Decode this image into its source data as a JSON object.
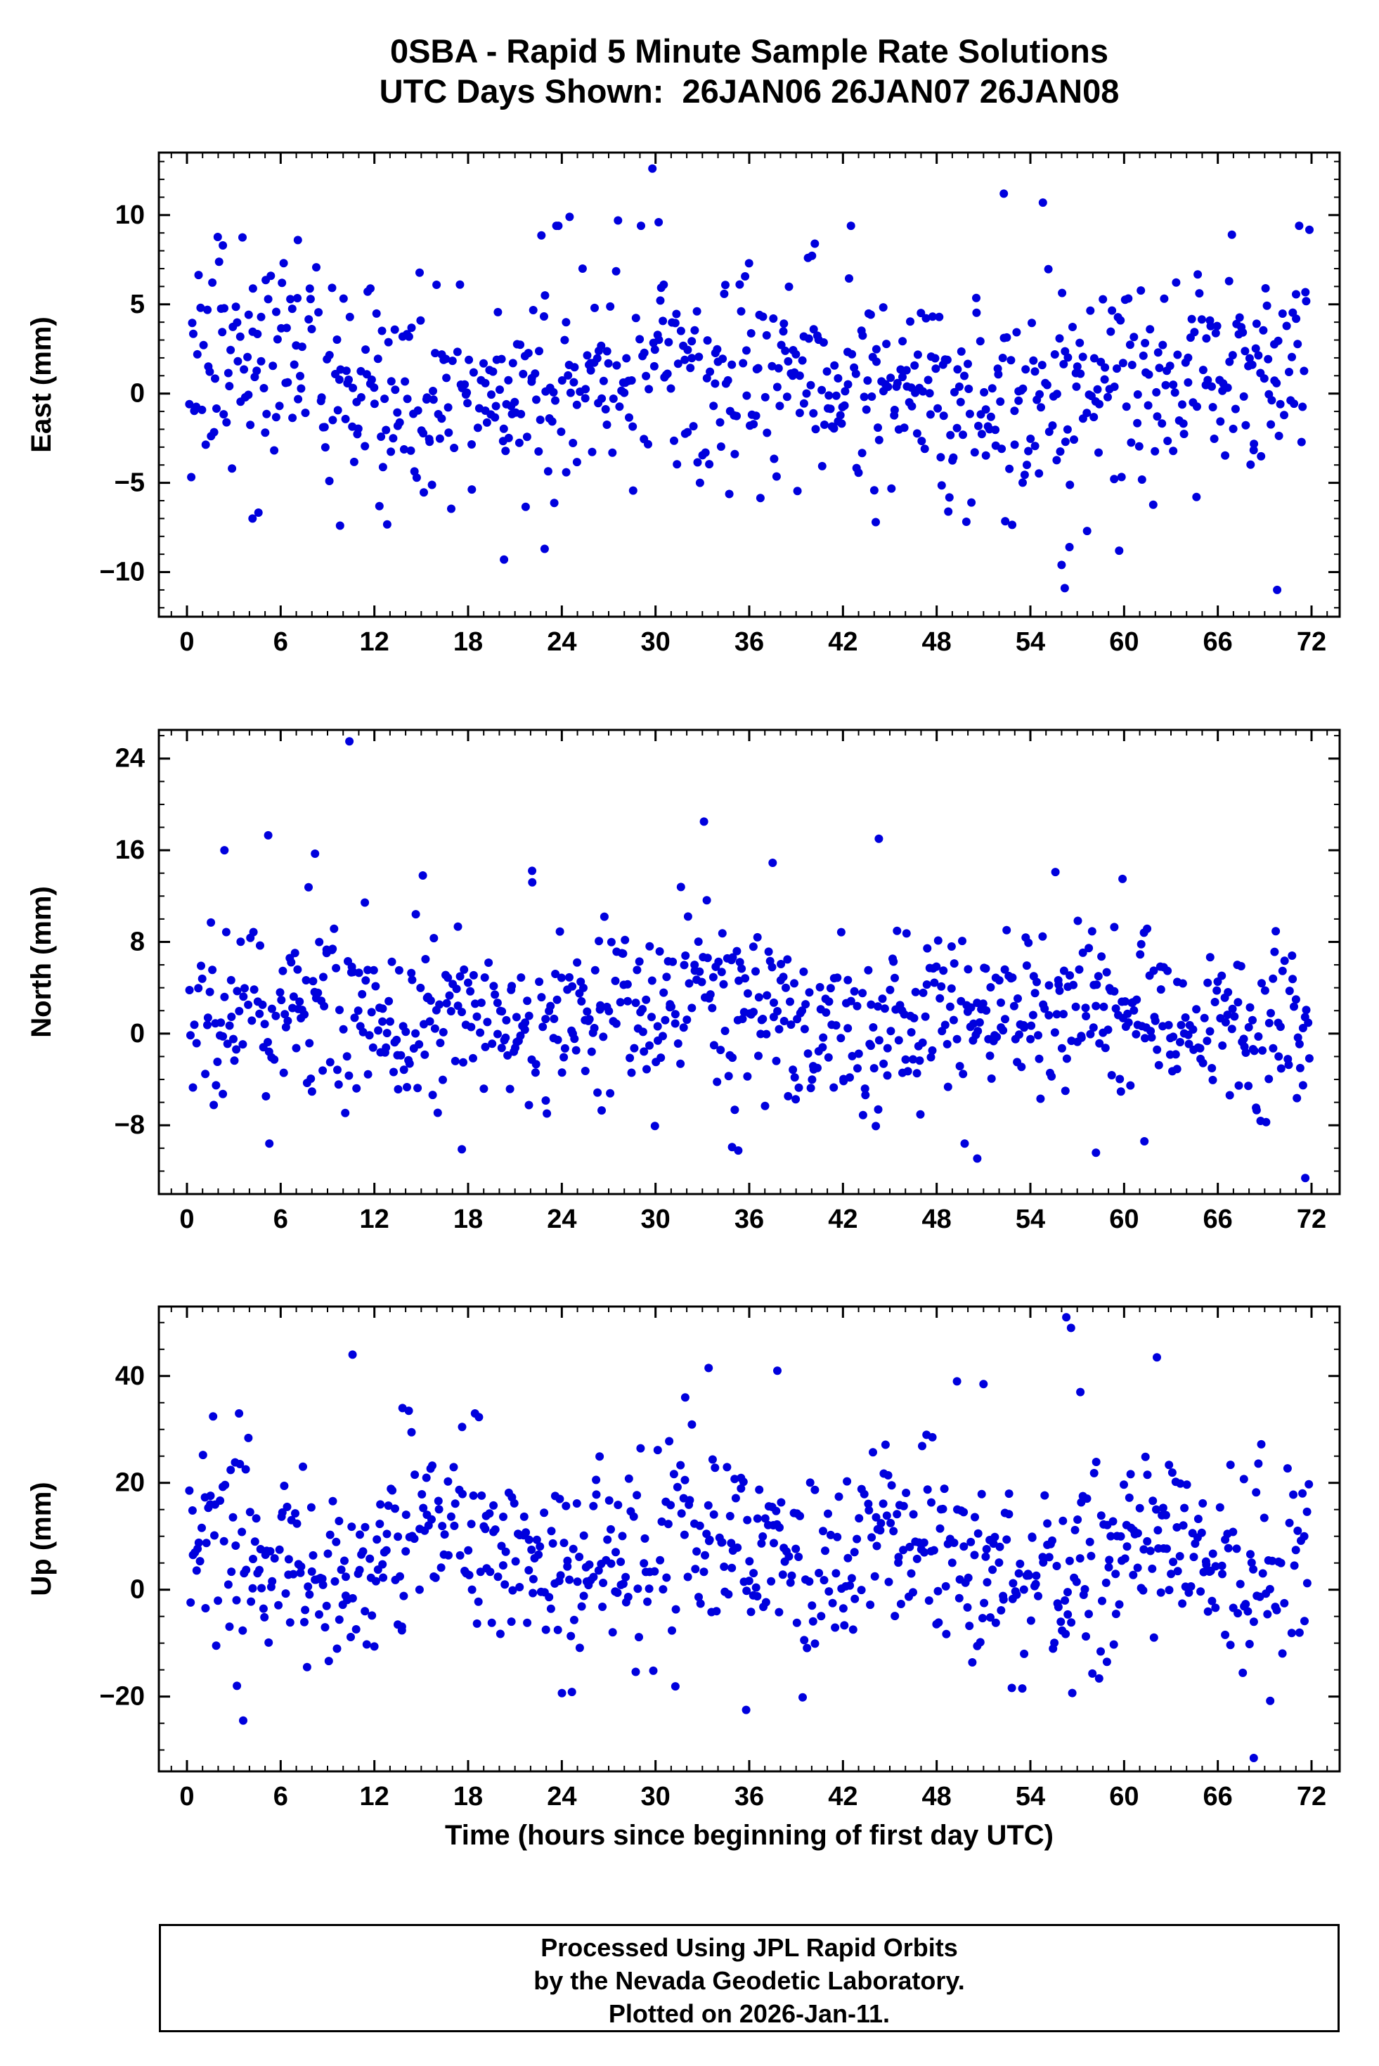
{
  "header": {
    "title_line1": "0SBA - Rapid 5 Minute Sample Rate Solutions",
    "title_line2": "UTC Days Shown:  26JAN06 26JAN07 26JAN08"
  },
  "footer": {
    "line1": "Processed Using JPL Rapid Orbits",
    "line2": "by the Nevada Geodetic Laboratory.",
    "line3": "Plotted on 2026-Jan-11."
  },
  "colors": {
    "point": "#0000dd",
    "frame": "#000000",
    "background": "#ffffff"
  },
  "chart_data": [
    {
      "type": "scatter",
      "title": "0SBA - Rapid 5 Minute Sample Rate Solutions",
      "ylabel": "East (mm)",
      "xlabel": "",
      "xlim": [
        -1.8,
        73.8
      ],
      "ylim": [
        -12.5,
        13.5
      ],
      "xticks": [
        0,
        6,
        12,
        18,
        24,
        30,
        36,
        42,
        48,
        54,
        60,
        66,
        72
      ],
      "yticks": [
        -10,
        -5,
        0,
        5,
        10
      ],
      "x_minor": 1,
      "y_minor": 1,
      "point_color": "#0000dd",
      "scatter_spec": {
        "count": 820,
        "seed": 11,
        "gap": 0.07,
        "mean": 0.8,
        "std": 3.0,
        "wave_amp": 1.2,
        "wave_period": 34,
        "wave_phase": 1.2,
        "clip": [
          -8.8,
          9.4
        ]
      },
      "outliers": [
        [
          29.8,
          12.6
        ],
        [
          52.3,
          11.2
        ],
        [
          54.8,
          10.7
        ],
        [
          24.5,
          9.9
        ],
        [
          27.6,
          9.7
        ],
        [
          30.2,
          9.6
        ],
        [
          66.9,
          8.9
        ],
        [
          2.3,
          8.3
        ],
        [
          7.1,
          8.6
        ],
        [
          40.2,
          8.4
        ],
        [
          56.2,
          -10.9
        ],
        [
          69.8,
          -11.0
        ],
        [
          56.0,
          -9.6
        ],
        [
          20.3,
          -9.3
        ],
        [
          22.9,
          -8.7
        ],
        [
          56.5,
          -8.6
        ],
        [
          44.1,
          -7.2
        ],
        [
          9.8,
          -7.4
        ],
        [
          4.2,
          -7.0
        ]
      ]
    },
    {
      "type": "scatter",
      "ylabel": "North (mm)",
      "xlabel": "",
      "xlim": [
        -1.8,
        73.8
      ],
      "ylim": [
        -14,
        26.5
      ],
      "xticks": [
        0,
        6,
        12,
        18,
        24,
        30,
        36,
        42,
        48,
        54,
        60,
        66,
        72
      ],
      "yticks": [
        -8,
        0,
        8,
        16,
        24
      ],
      "x_minor": 1,
      "y_minor": 2,
      "point_color": "#0000dd",
      "scatter_spec": {
        "count": 820,
        "seed": 22,
        "gap": 0.07,
        "mean": 1.6,
        "std": 3.7,
        "wave_amp": 1.0,
        "wave_period": 26,
        "wave_phase": 0.4,
        "clip": [
          -9.6,
          13.2
        ]
      },
      "outliers": [
        [
          10.4,
          25.5
        ],
        [
          33.1,
          18.5
        ],
        [
          5.2,
          17.3
        ],
        [
          44.3,
          17.0
        ],
        [
          37.5,
          14.9
        ],
        [
          22.1,
          14.2
        ],
        [
          55.6,
          14.1
        ],
        [
          59.9,
          13.5
        ],
        [
          8.2,
          15.7
        ],
        [
          2.4,
          16.0
        ],
        [
          15.1,
          13.8
        ],
        [
          71.6,
          -12.6
        ],
        [
          35.3,
          -10.2
        ],
        [
          50.6,
          -10.9
        ],
        [
          58.2,
          -10.4
        ],
        [
          17.6,
          -10.1
        ],
        [
          34.9,
          -9.9
        ],
        [
          61.3,
          -9.4
        ]
      ]
    },
    {
      "type": "scatter",
      "ylabel": "Up (mm)",
      "xlabel": "Time (hours since beginning of first day UTC)",
      "xlim": [
        -1.8,
        73.8
      ],
      "ylim": [
        -34,
        53
      ],
      "xticks": [
        0,
        6,
        12,
        18,
        24,
        30,
        36,
        42,
        48,
        54,
        60,
        66,
        72
      ],
      "yticks": [
        -20,
        0,
        20,
        40
      ],
      "x_minor": 1,
      "y_minor": 5,
      "point_color": "#0000dd",
      "scatter_spec": {
        "count": 820,
        "seed": 33,
        "gap": 0.07,
        "mean": 6.5,
        "std": 9.0,
        "wave_amp": 4.0,
        "wave_period": 15,
        "wave_phase": 0.9,
        "clip": [
          -21,
          33
        ]
      },
      "outliers": [
        [
          56.3,
          51.0
        ],
        [
          56.6,
          49.0
        ],
        [
          10.6,
          44.0
        ],
        [
          62.1,
          43.5
        ],
        [
          33.4,
          41.5
        ],
        [
          37.8,
          41.0
        ],
        [
          49.3,
          39.0
        ],
        [
          51.0,
          38.5
        ],
        [
          57.2,
          37.0
        ],
        [
          13.8,
          34.0
        ],
        [
          14.2,
          33.5
        ],
        [
          31.9,
          36.0
        ],
        [
          3.6,
          -24.5
        ],
        [
          68.3,
          -31.5
        ],
        [
          35.8,
          -22.5
        ],
        [
          3.2,
          -18.0
        ],
        [
          58.9,
          -13.5
        ]
      ]
    }
  ]
}
